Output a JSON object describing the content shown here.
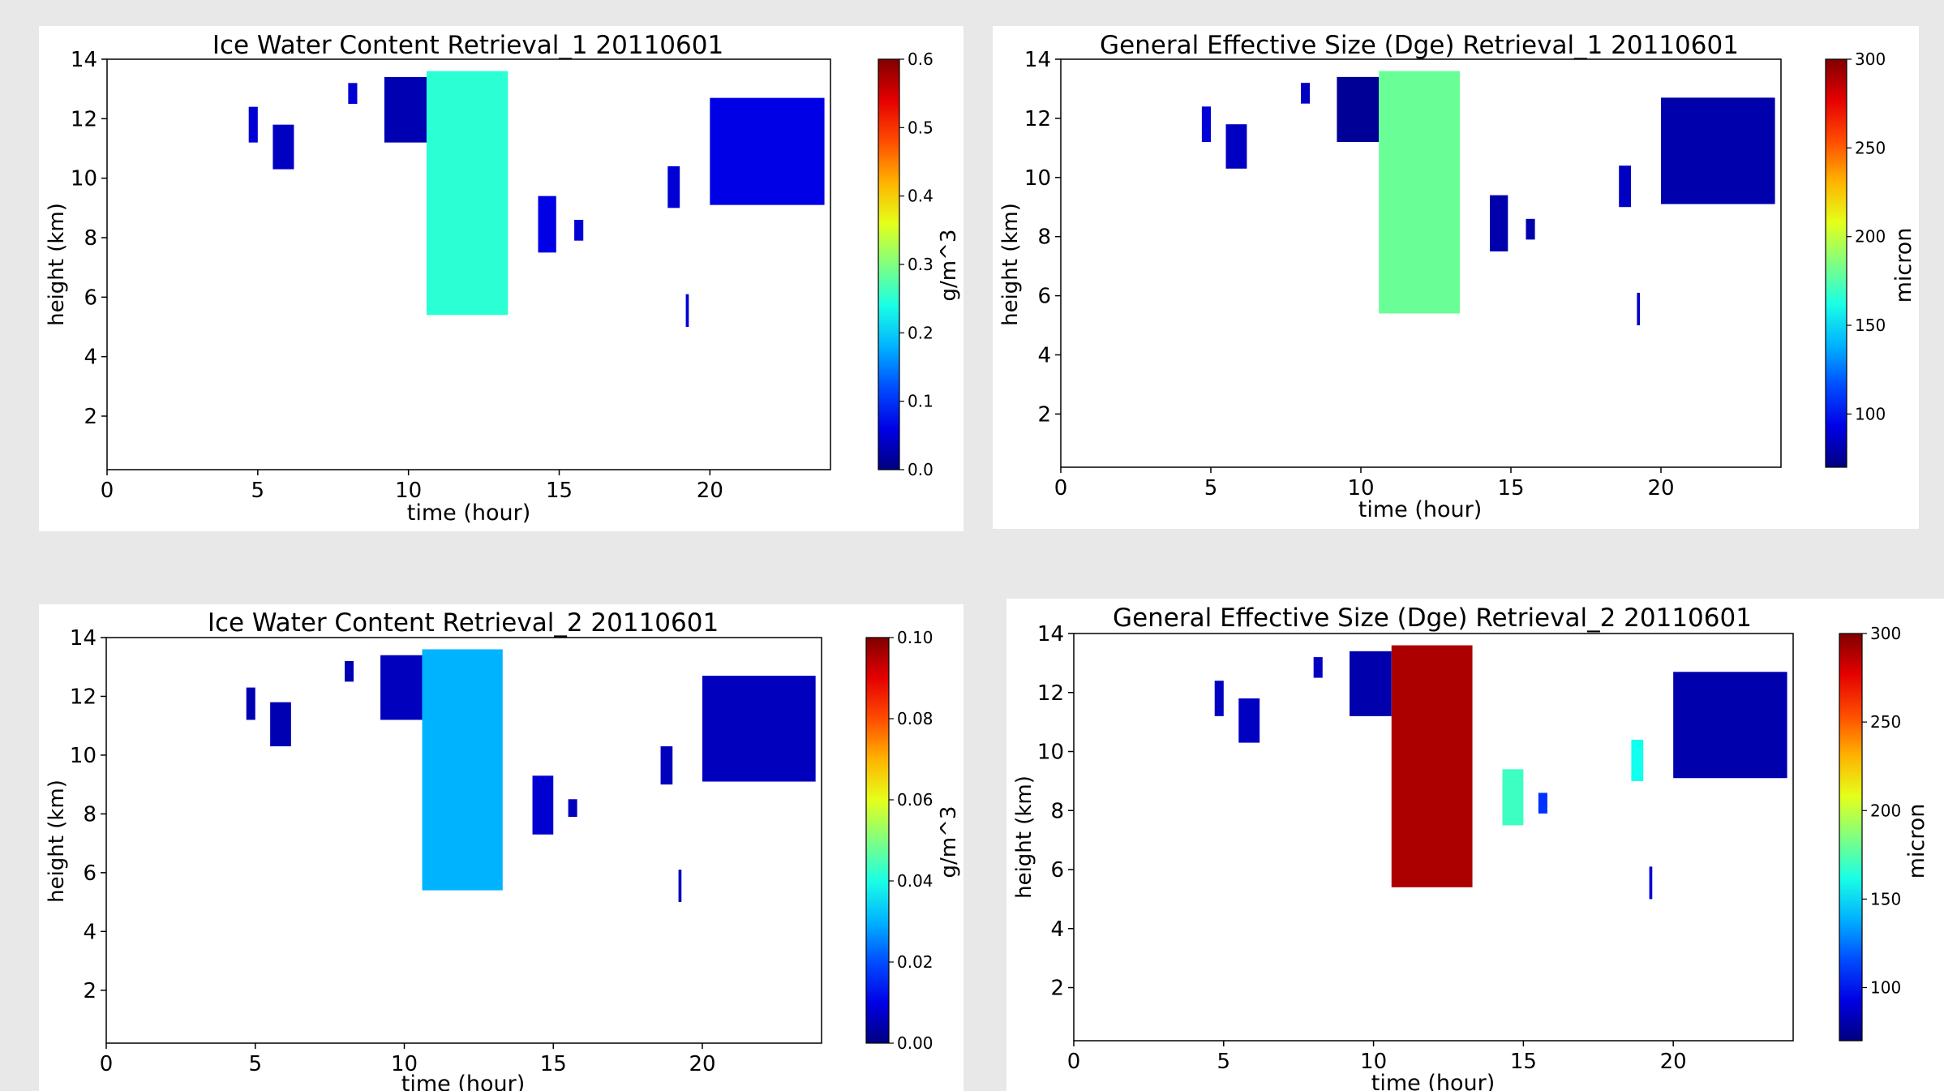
{
  "page": {
    "background": "#e8e8e8",
    "panel_background": "#ffffff"
  },
  "chart_data": [
    {
      "type": "heatmap",
      "title": "Ice Water Content Retrieval_1 20110601",
      "xlabel": "time (hour)",
      "ylabel": "height (km)",
      "xlim": [
        0,
        24
      ],
      "ylim": [
        0.2,
        14
      ],
      "xticks": [
        0,
        5,
        10,
        15,
        20
      ],
      "yticks": [
        2,
        4,
        6,
        8,
        10,
        12,
        14
      ],
      "colorbar": {
        "label": "g/m^3",
        "colormap": "jet",
        "min": 0,
        "max": 0.6,
        "ticks": [
          0.0,
          0.1,
          0.2,
          0.3,
          0.4,
          0.5,
          0.6
        ],
        "tick_labels": [
          "0.0",
          "0.1",
          "0.2",
          "0.3",
          "0.4",
          "0.5",
          "0.6"
        ]
      },
      "features": [
        {
          "t0": 4.7,
          "t1": 5.0,
          "z_top": 12.4,
          "z_bottom": 11.2,
          "value": 0.05
        },
        {
          "t0": 5.5,
          "t1": 6.2,
          "z_top": 11.8,
          "z_bottom": 10.3,
          "value": 0.04
        },
        {
          "t0": 8.0,
          "t1": 8.3,
          "z_top": 13.2,
          "z_bottom": 12.5,
          "value": 0.05
        },
        {
          "t0": 9.2,
          "t1": 10.6,
          "z_top": 13.4,
          "z_bottom": 11.2,
          "value": 0.03
        },
        {
          "t0": 10.6,
          "t1": 13.3,
          "z_top": 13.6,
          "z_bottom": 5.4,
          "value": 0.25
        },
        {
          "t0": 14.3,
          "t1": 14.9,
          "z_top": 9.4,
          "z_bottom": 7.5,
          "value": 0.06
        },
        {
          "t0": 15.5,
          "t1": 15.8,
          "z_top": 8.6,
          "z_bottom": 7.9,
          "value": 0.05
        },
        {
          "t0": 18.6,
          "t1": 19.0,
          "z_top": 10.4,
          "z_bottom": 9.0,
          "value": 0.05
        },
        {
          "t0": 19.2,
          "t1": 19.3,
          "z_top": 6.1,
          "z_bottom": 5.0,
          "value": 0.05
        },
        {
          "t0": 20.0,
          "t1": 23.8,
          "z_top": 12.7,
          "z_bottom": 9.1,
          "value": 0.06
        }
      ]
    },
    {
      "type": "heatmap",
      "title": "General Effective Size (Dge) Retrieval_1 20110601",
      "xlabel": "time (hour)",
      "ylabel": "height (km)",
      "xlim": [
        0,
        24
      ],
      "ylim": [
        0.2,
        14
      ],
      "xticks": [
        0,
        5,
        10,
        15,
        20
      ],
      "yticks": [
        2,
        4,
        6,
        8,
        10,
        12,
        14
      ],
      "colorbar": {
        "label": "micron",
        "colormap": "jet",
        "min": 70,
        "max": 300,
        "ticks": [
          100,
          150,
          200,
          250,
          300
        ],
        "tick_labels": [
          "100",
          "150",
          "200",
          "250",
          "300"
        ]
      },
      "features": [
        {
          "t0": 4.7,
          "t1": 5.0,
          "z_top": 12.4,
          "z_bottom": 11.2,
          "value": 90
        },
        {
          "t0": 5.5,
          "t1": 6.2,
          "z_top": 11.8,
          "z_bottom": 10.3,
          "value": 85
        },
        {
          "t0": 8.0,
          "t1": 8.3,
          "z_top": 13.2,
          "z_bottom": 12.5,
          "value": 85
        },
        {
          "t0": 9.2,
          "t1": 10.6,
          "z_top": 13.4,
          "z_bottom": 11.2,
          "value": 75
        },
        {
          "t0": 10.6,
          "t1": 13.3,
          "z_top": 13.6,
          "z_bottom": 5.4,
          "value": 180
        },
        {
          "t0": 14.3,
          "t1": 14.9,
          "z_top": 9.4,
          "z_bottom": 7.5,
          "value": 80
        },
        {
          "t0": 15.5,
          "t1": 15.8,
          "z_top": 8.6,
          "z_bottom": 7.9,
          "value": 80
        },
        {
          "t0": 18.6,
          "t1": 19.0,
          "z_top": 10.4,
          "z_bottom": 9.0,
          "value": 85
        },
        {
          "t0": 19.2,
          "t1": 19.3,
          "z_top": 6.1,
          "z_bottom": 5.0,
          "value": 85
        },
        {
          "t0": 20.0,
          "t1": 23.8,
          "z_top": 12.7,
          "z_bottom": 9.1,
          "value": 80
        }
      ]
    },
    {
      "type": "heatmap",
      "title": "Ice Water Content Retrieval_2 20110601",
      "xlabel": "time (hour)",
      "ylabel": "height (km)",
      "xlim": [
        0,
        24
      ],
      "ylim": [
        0.2,
        14
      ],
      "xticks": [
        0,
        5,
        10,
        15,
        20
      ],
      "yticks": [
        2,
        4,
        6,
        8,
        10,
        12,
        14
      ],
      "colorbar": {
        "label": "g/m^3",
        "colormap": "jet",
        "min": 0,
        "max": 0.1,
        "ticks": [
          0.0,
          0.02,
          0.04,
          0.06,
          0.08,
          0.1
        ],
        "tick_labels": [
          "0.00",
          "0.02",
          "0.04",
          "0.06",
          "0.08",
          "0.10"
        ]
      },
      "features": [
        {
          "t0": 4.7,
          "t1": 5.0,
          "z_top": 12.3,
          "z_bottom": 11.2,
          "value": 0.005
        },
        {
          "t0": 5.5,
          "t1": 6.2,
          "z_top": 11.8,
          "z_bottom": 10.3,
          "value": 0.005
        },
        {
          "t0": 8.0,
          "t1": 8.3,
          "z_top": 13.2,
          "z_bottom": 12.5,
          "value": 0.005
        },
        {
          "t0": 9.2,
          "t1": 10.6,
          "z_top": 13.4,
          "z_bottom": 11.2,
          "value": 0.006
        },
        {
          "t0": 10.6,
          "t1": 13.3,
          "z_top": 13.6,
          "z_bottom": 5.4,
          "value": 0.03
        },
        {
          "t0": 14.3,
          "t1": 15.0,
          "z_top": 9.3,
          "z_bottom": 7.3,
          "value": 0.008
        },
        {
          "t0": 15.5,
          "t1": 15.8,
          "z_top": 8.5,
          "z_bottom": 7.9,
          "value": 0.006
        },
        {
          "t0": 18.6,
          "t1": 19.0,
          "z_top": 10.3,
          "z_bottom": 9.0,
          "value": 0.006
        },
        {
          "t0": 19.2,
          "t1": 19.3,
          "z_top": 6.1,
          "z_bottom": 5.0,
          "value": 0.006
        },
        {
          "t0": 20.0,
          "t1": 23.8,
          "z_top": 12.7,
          "z_bottom": 9.1,
          "value": 0.006
        }
      ]
    },
    {
      "type": "heatmap",
      "title": "General Effective Size (Dge) Retrieval_2 20110601",
      "xlabel": "time (hour)",
      "ylabel": "height (km)",
      "xlim": [
        0,
        24
      ],
      "ylim": [
        0.2,
        14
      ],
      "xticks": [
        0,
        5,
        10,
        15,
        20
      ],
      "yticks": [
        2,
        4,
        6,
        8,
        10,
        12,
        14
      ],
      "colorbar": {
        "label": "micron",
        "colormap": "jet",
        "min": 70,
        "max": 300,
        "ticks": [
          100,
          150,
          200,
          250,
          300
        ],
        "tick_labels": [
          "100",
          "150",
          "200",
          "250",
          "300"
        ]
      },
      "features": [
        {
          "t0": 4.7,
          "t1": 5.0,
          "z_top": 12.4,
          "z_bottom": 11.2,
          "value": 85
        },
        {
          "t0": 5.5,
          "t1": 6.2,
          "z_top": 11.8,
          "z_bottom": 10.3,
          "value": 85
        },
        {
          "t0": 8.0,
          "t1": 8.3,
          "z_top": 13.2,
          "z_bottom": 12.5,
          "value": 85
        },
        {
          "t0": 9.2,
          "t1": 10.6,
          "z_top": 13.4,
          "z_bottom": 11.2,
          "value": 80
        },
        {
          "t0": 10.6,
          "t1": 13.3,
          "z_top": 13.6,
          "z_bottom": 5.4,
          "value": 290
        },
        {
          "t0": 14.3,
          "t1": 15.0,
          "z_top": 9.4,
          "z_bottom": 7.5,
          "value": 170
        },
        {
          "t0": 15.5,
          "t1": 15.8,
          "z_top": 8.6,
          "z_bottom": 7.9,
          "value": 110
        },
        {
          "t0": 18.6,
          "t1": 19.0,
          "z_top": 10.4,
          "z_bottom": 9.0,
          "value": 160
        },
        {
          "t0": 19.2,
          "t1": 19.3,
          "z_top": 6.1,
          "z_bottom": 5.0,
          "value": 90
        },
        {
          "t0": 20.0,
          "t1": 23.8,
          "z_top": 12.7,
          "z_bottom": 9.1,
          "value": 80
        }
      ]
    }
  ]
}
